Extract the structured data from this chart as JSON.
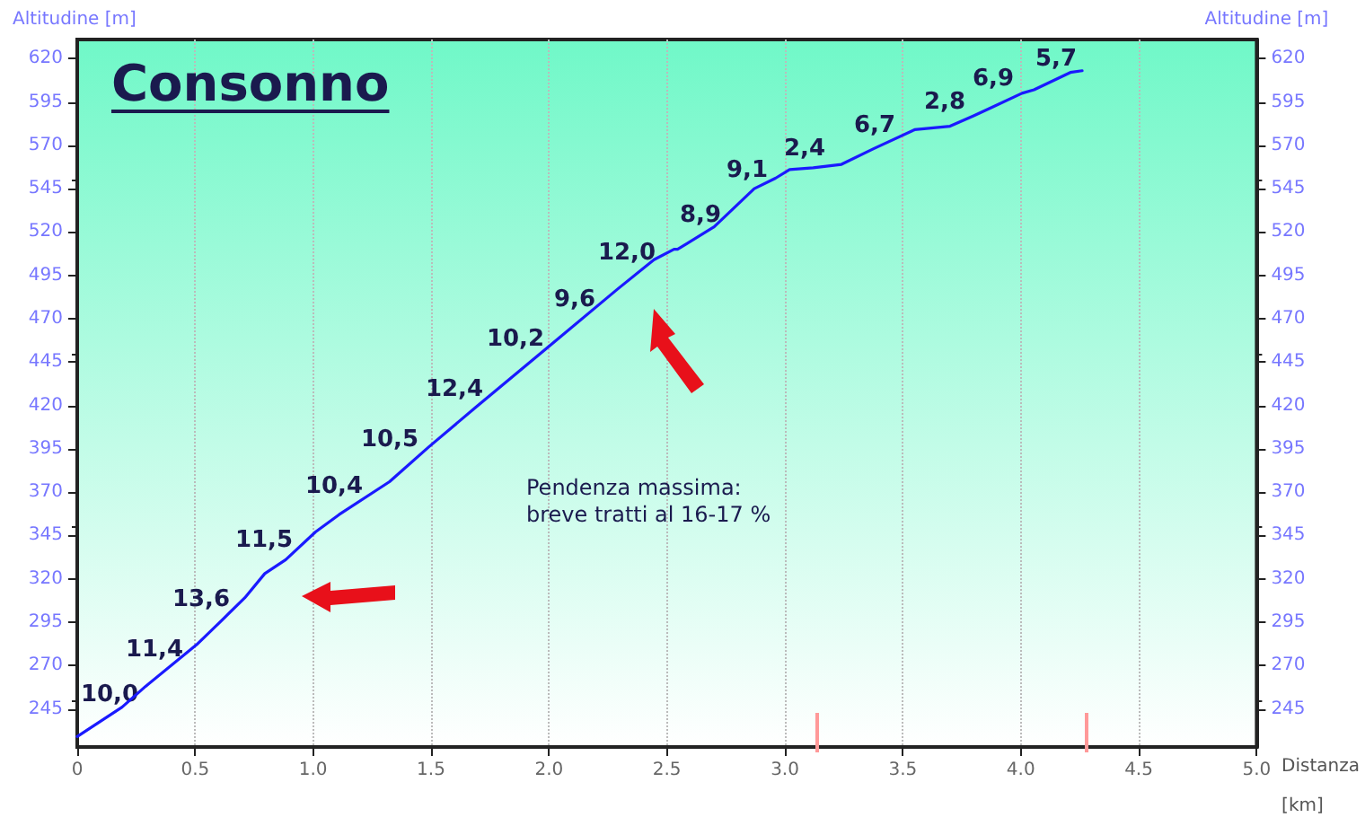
{
  "chart_data": {
    "type": "line",
    "title": "Consonno",
    "xlabel": "Distanza\n[km]",
    "ylabel": "Altitudine [m]",
    "y2label": "Altitudine [m]",
    "x": [
      0,
      0.19,
      0.29,
      0.506,
      0.62,
      0.71,
      0.795,
      0.884,
      1.01,
      1.11,
      1.324,
      1.49,
      1.69,
      2.017,
      2.29,
      2.445,
      2.53,
      2.545,
      2.7,
      2.87,
      2.96,
      3.02,
      3.12,
      3.24,
      3.376,
      3.55,
      3.7,
      3.8,
      3.88,
      4.005,
      4.056,
      4.21,
      4.26
    ],
    "series": [
      {
        "color": "#1a1aff",
        "values": [
          229,
          246,
          258,
          282,
          297,
          309,
          323,
          331,
          347,
          357,
          376,
          396,
          419,
          456,
          487,
          504,
          510,
          510,
          523,
          545,
          551,
          556,
          557,
          559,
          568,
          579,
          581,
          587,
          592,
          600,
          602,
          612,
          613
        ]
      }
    ],
    "xlim": [
      0,
      5
    ],
    "xticks": [
      0,
      {
        "value": 0.5,
        "label": "0.5"
      },
      {
        "value": 1,
        "label": "1.0"
      },
      {
        "value": 1.5,
        "label": "1.5"
      },
      {
        "value": 2,
        "label": "2.0"
      },
      {
        "value": 2.5,
        "label": "2.5"
      },
      {
        "value": 3,
        "label": "3.0"
      },
      {
        "value": 3.5,
        "label": "3.5"
      },
      {
        "value": 4,
        "label": "4.0"
      },
      {
        "value": 4.5,
        "label": "4.5"
      },
      {
        "value": 5,
        "label": "5.0"
      }
    ],
    "ylim": [
      223,
      631
    ],
    "yticks": [
      245,
      270,
      295,
      320,
      345,
      370,
      395,
      420,
      445,
      470,
      495,
      520,
      545,
      570,
      595,
      620
    ],
    "y2lim": [
      223,
      631
    ],
    "y2ticks": [
      245,
      270,
      295,
      320,
      345,
      370,
      395,
      420,
      445,
      470,
      495,
      520,
      545,
      570,
      595,
      620
    ],
    "grid": "x",
    "marker": "none",
    "line_style": "solid",
    "annotations": [
      "10,0",
      "11,4",
      "13,6",
      "11,5",
      "10,4",
      "10,5",
      "12,4",
      "10,2",
      "9,6",
      "12,0",
      "8,9",
      "9,1",
      "2,4",
      "6,7",
      "2,8",
      "6,9",
      "5,7",
      "Pendenza massima:\nbreve tratti al 16-17 %"
    ]
  }
}
